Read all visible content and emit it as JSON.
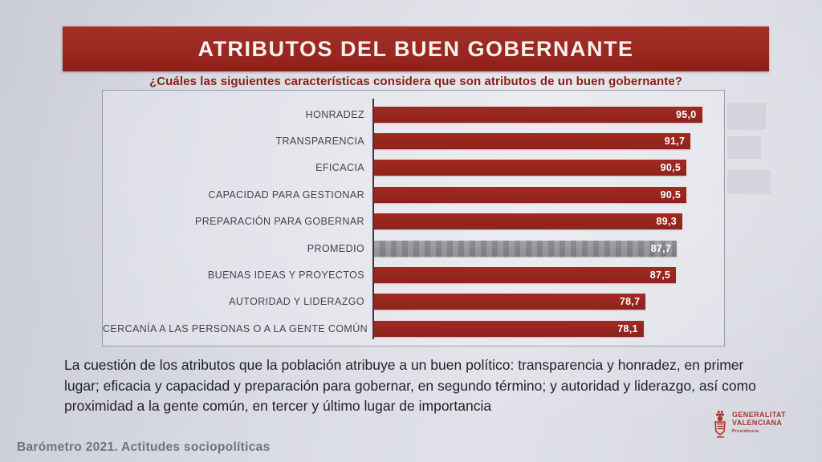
{
  "slide": {
    "title": "ATRIBUTOS DEL BUEN GOBERNANTE",
    "subtitle": "¿Cuáles las siguientes características considera que son atributos de un buen gobernante?",
    "summary": "La cuestión de los atributos que la población atribuye a un buen político: transparencia y honradez, en primer lugar; eficacia y capacidad y preparación para gobernar, en segundo término; y autoridad y liderazgo, así como proximidad a la gente común, en tercer y último lugar de importancia",
    "footer": "Barómetro 2021. Actitudes sociopolíticas",
    "logo": {
      "line1": "GENERALITAT",
      "line2": "VALENCIANA",
      "line3": "Presidència"
    }
  },
  "colors": {
    "banner_red": "#97251e",
    "bar_red": "#9a2820",
    "promedio_gray": "#8f9196",
    "subtitle_red": "#8e1d15",
    "logo_red": "#a8372c"
  },
  "chart_data": {
    "type": "bar",
    "orientation": "horizontal",
    "title": "ATRIBUTOS DEL BUEN GOBERNANTE",
    "xlabel": "",
    "ylabel": "",
    "xlim": [
      0,
      100
    ],
    "grid": false,
    "legend": "none",
    "categories": [
      "HONRADEZ",
      "TRANSPARENCIA",
      "EFICACIA",
      "CAPACIDAD PARA GESTIONAR",
      "PREPARACIÓN PARA GOBERNAR",
      "PROMEDIO",
      "BUENAS IDEAS Y PROYECTOS",
      "AUTORIDAD Y LIDERAZGO",
      "CERCANÍA A LAS PERSONAS O A LA GENTE COMÚN"
    ],
    "values": [
      95.0,
      91.7,
      90.5,
      90.5,
      89.3,
      87.7,
      87.5,
      78.7,
      78.1
    ],
    "value_labels": [
      "95,0",
      "91,7",
      "90,5",
      "90,5",
      "89,3",
      "87,7",
      "87,5",
      "78,7",
      "78,1"
    ],
    "highlight_category": "PROMEDIO",
    "highlight_style": "gray"
  }
}
